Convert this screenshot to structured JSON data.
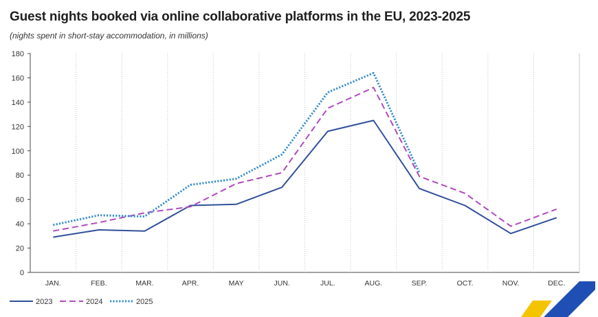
{
  "chart_data": {
    "type": "line",
    "title": "Guest nights booked via online collaborative platforms in the EU, 2023-2025",
    "subtitle": "(nights spent in short-stay accommodation, in millions)",
    "xlabel": "",
    "ylabel": "",
    "ylim": [
      0,
      180
    ],
    "yticks": [
      0,
      20,
      40,
      60,
      80,
      100,
      120,
      140,
      160,
      180
    ],
    "categories": [
      "JAN.",
      "FEB.",
      "MAR.",
      "APR.",
      "MAY",
      "JUN.",
      "JUL.",
      "AUG.",
      "SEP.",
      "OCT.",
      "NOV.",
      "DEC."
    ],
    "grid": "vertical-dotted",
    "legend_position": "bottom-left",
    "series": [
      {
        "name": "2023",
        "color": "#2f4f9a",
        "style": "solid",
        "values": [
          29,
          35,
          34,
          55,
          56,
          70,
          116,
          125,
          69,
          55,
          32,
          45
        ]
      },
      {
        "name": "2024",
        "color": "#b048c0",
        "style": "dashed",
        "values": [
          34,
          41,
          49,
          54,
          73,
          82,
          135,
          152,
          79,
          65,
          38,
          52
        ]
      },
      {
        "name": "2025",
        "color": "#3a8fcc",
        "style": "dotted",
        "values": [
          39,
          47,
          46,
          72,
          77,
          97,
          148,
          164,
          82,
          null,
          null,
          null
        ]
      }
    ]
  },
  "logo": {
    "colors": [
      "#f5c400",
      "#1f4fb5"
    ]
  }
}
